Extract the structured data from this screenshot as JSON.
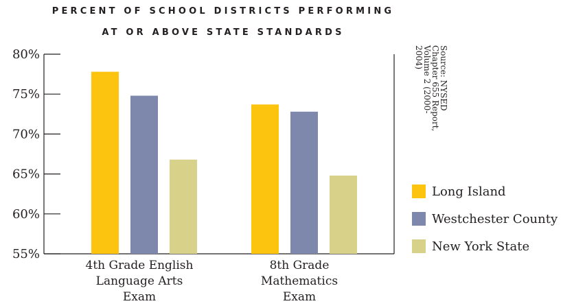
{
  "chart_data": {
    "type": "bar",
    "title": "PERCENT OF SCHOOL DISTRICTS PERFORMING AT OR ABOVE STATE STANDARDS",
    "title_lines": [
      "PERCENT OF SCHOOL DISTRICTS PERFORMING",
      "AT OR ABOVE STATE STANDARDS"
    ],
    "categories": [
      [
        "4th Grade English",
        "Language Arts",
        "Exam"
      ],
      [
        "8th Grade",
        "Mathematics",
        "Exam"
      ]
    ],
    "series": [
      {
        "name": "Long Island",
        "color": "#fcc40e",
        "values": [
          77.8,
          73.7
        ]
      },
      {
        "name": "Westchester County",
        "color": "#7d88ac",
        "values": [
          74.8,
          72.8
        ]
      },
      {
        "name": "New York State",
        "color": "#d8d18a",
        "values": [
          66.8,
          64.8
        ]
      }
    ],
    "ylim": [
      55,
      80
    ],
    "yticks": [
      55,
      60,
      65,
      70,
      75,
      80
    ],
    "ytick_labels": [
      "55%",
      "60%",
      "65%",
      "70%",
      "75%",
      "80%"
    ],
    "xlabel": "",
    "ylabel": "",
    "grid": false,
    "legend_position": "right",
    "source_note": [
      "Source: NYSED",
      "Chapter 655 Report,",
      "Volume 2 (2000-",
      "2004)"
    ]
  }
}
